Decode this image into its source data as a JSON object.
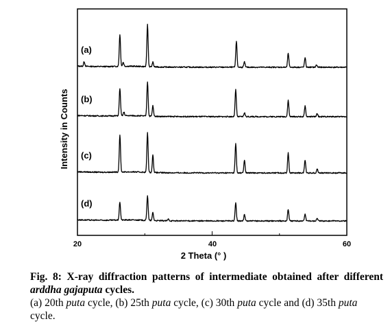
{
  "chart_data": {
    "type": "line",
    "xlabel": "2 Theta (° )",
    "ylabel": "Intensity in Counts",
    "xlim": [
      20,
      60
    ],
    "x_ticks": [
      "20",
      "40",
      "60"
    ],
    "grid": false,
    "series": [
      {
        "label": "(a)",
        "peaks": [
          [
            21.0,
            0.08
          ],
          [
            26.3,
            0.55
          ],
          [
            26.8,
            0.07
          ],
          [
            30.4,
            0.72
          ],
          [
            31.2,
            0.08
          ],
          [
            43.6,
            0.45
          ],
          [
            44.8,
            0.09
          ],
          [
            51.3,
            0.24
          ],
          [
            53.8,
            0.16
          ],
          [
            55.5,
            0.04
          ]
        ]
      },
      {
        "label": "(b)",
        "peaks": [
          [
            26.3,
            0.47
          ],
          [
            26.9,
            0.06
          ],
          [
            30.4,
            0.59
          ],
          [
            31.2,
            0.18
          ],
          [
            43.5,
            0.46
          ],
          [
            44.8,
            0.07
          ],
          [
            51.3,
            0.28
          ],
          [
            53.8,
            0.18
          ],
          [
            55.6,
            0.05
          ]
        ]
      },
      {
        "label": "(c)",
        "peaks": [
          [
            26.3,
            0.64
          ],
          [
            30.4,
            0.68
          ],
          [
            31.2,
            0.3
          ],
          [
            43.5,
            0.5
          ],
          [
            44.8,
            0.22
          ],
          [
            51.3,
            0.34
          ],
          [
            53.8,
            0.22
          ],
          [
            55.6,
            0.07
          ]
        ]
      },
      {
        "label": "(d)",
        "peaks": [
          [
            26.3,
            0.31
          ],
          [
            30.4,
            0.43
          ],
          [
            31.2,
            0.14
          ],
          [
            33.5,
            0.03
          ],
          [
            43.5,
            0.31
          ],
          [
            44.8,
            0.11
          ],
          [
            51.3,
            0.2
          ],
          [
            53.8,
            0.12
          ],
          [
            55.6,
            0.05
          ]
        ]
      }
    ]
  },
  "caption": {
    "line1_prefix": "Fig. 8: X-ray diffraction patterns of intermediate obtained after different ",
    "line1_italic": "arddha gajaputa",
    "line1_suffix": " cycles.",
    "l2_a": "(a) 20th ",
    "l2_a_i": "puta",
    "l2_b": " cycle, (b) 25th ",
    "l2_b_i": "puta",
    "l2_c": " cycle, (c) 30th ",
    "l2_c_i": "puta",
    "l2_d": " cycle and (d) 35th ",
    "l2_d_i": "puta",
    "l2_end": " cycle."
  }
}
